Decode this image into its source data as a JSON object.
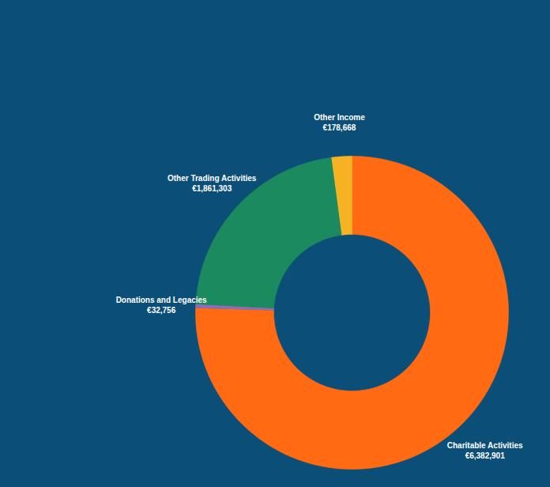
{
  "chart_data": {
    "type": "donut",
    "categories": [
      "Charitable Activities",
      "Donations and Legacies",
      "Other Trading Activities",
      "Other Income"
    ],
    "values": [
      6382901,
      32756,
      1861303,
      178668
    ],
    "value_labels": [
      "€6,382,901",
      "€32,756",
      "€1,861,303",
      "€178,668"
    ],
    "colors": [
      "#ff6a13",
      "#8a6fb8",
      "#1b8a5e",
      "#f5b324"
    ],
    "data_labels": true,
    "tick_labels": false
  }
}
